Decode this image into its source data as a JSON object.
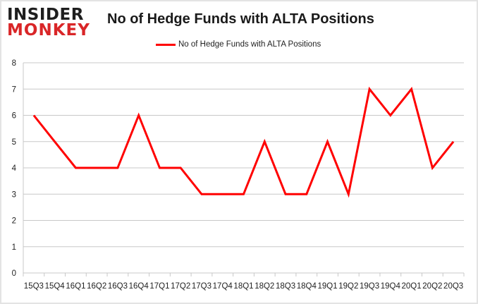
{
  "logo": {
    "line1": "INSIDER",
    "line2": "MONKEY"
  },
  "chart_data": {
    "type": "line",
    "title": "No of Hedge Funds with ALTA Positions",
    "xlabel": "",
    "ylabel": "",
    "categories": [
      "15Q3",
      "15Q4",
      "16Q1",
      "16Q2",
      "16Q3",
      "16Q4",
      "17Q1",
      "17Q2",
      "17Q3",
      "17Q4",
      "18Q1",
      "18Q2",
      "18Q3",
      "18Q4",
      "19Q1",
      "19Q2",
      "19Q3",
      "19Q4",
      "20Q1",
      "20Q2",
      "20Q3"
    ],
    "series": [
      {
        "name": "No of Hedge Funds with ALTA Positions",
        "color": "#ff0000",
        "values": [
          6,
          5,
          4,
          4,
          4,
          6,
          4,
          4,
          3,
          3,
          3,
          5,
          3,
          3,
          5,
          3,
          7,
          6,
          7,
          4,
          5
        ]
      }
    ],
    "ylim": [
      0,
      8
    ],
    "yticks": [
      0,
      1,
      2,
      3,
      4,
      5,
      6,
      7,
      8
    ],
    "grid": true,
    "legend_position": "top-center"
  }
}
